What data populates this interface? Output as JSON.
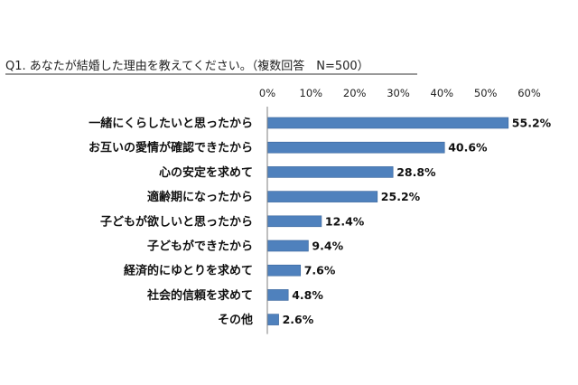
{
  "chart_data": {
    "type": "bar",
    "orientation": "horizontal",
    "title": "Q1. あなたが結婚した理由を教えてください。（複数回答　N=500）",
    "categories": [
      "一緒にくらしたいと思ったから",
      "お互いの愛情が確認できたから",
      "心の安定を求めて",
      "適齢期になったから",
      "子どもが欲しいと思ったから",
      "子どもができたから",
      "経済的にゆとりを求めて",
      "社会的信頼を求めて",
      "その他"
    ],
    "values": [
      55.2,
      40.6,
      28.8,
      25.2,
      12.4,
      9.4,
      7.6,
      4.8,
      2.6
    ],
    "value_labels": [
      "55.2%",
      "40.6%",
      "28.8%",
      "25.2%",
      "12.4%",
      "9.4%",
      "7.6%",
      "4.8%",
      "2.6%"
    ],
    "xticks": [
      0,
      10,
      20,
      30,
      40,
      50,
      60
    ],
    "xtick_labels": [
      "0%",
      "10%",
      "20%",
      "30%",
      "40%",
      "50%",
      "60%"
    ],
    "xlim": [
      0,
      60
    ],
    "xaxis_position": "top",
    "grid": false,
    "bar_color": "#4f81bd"
  }
}
